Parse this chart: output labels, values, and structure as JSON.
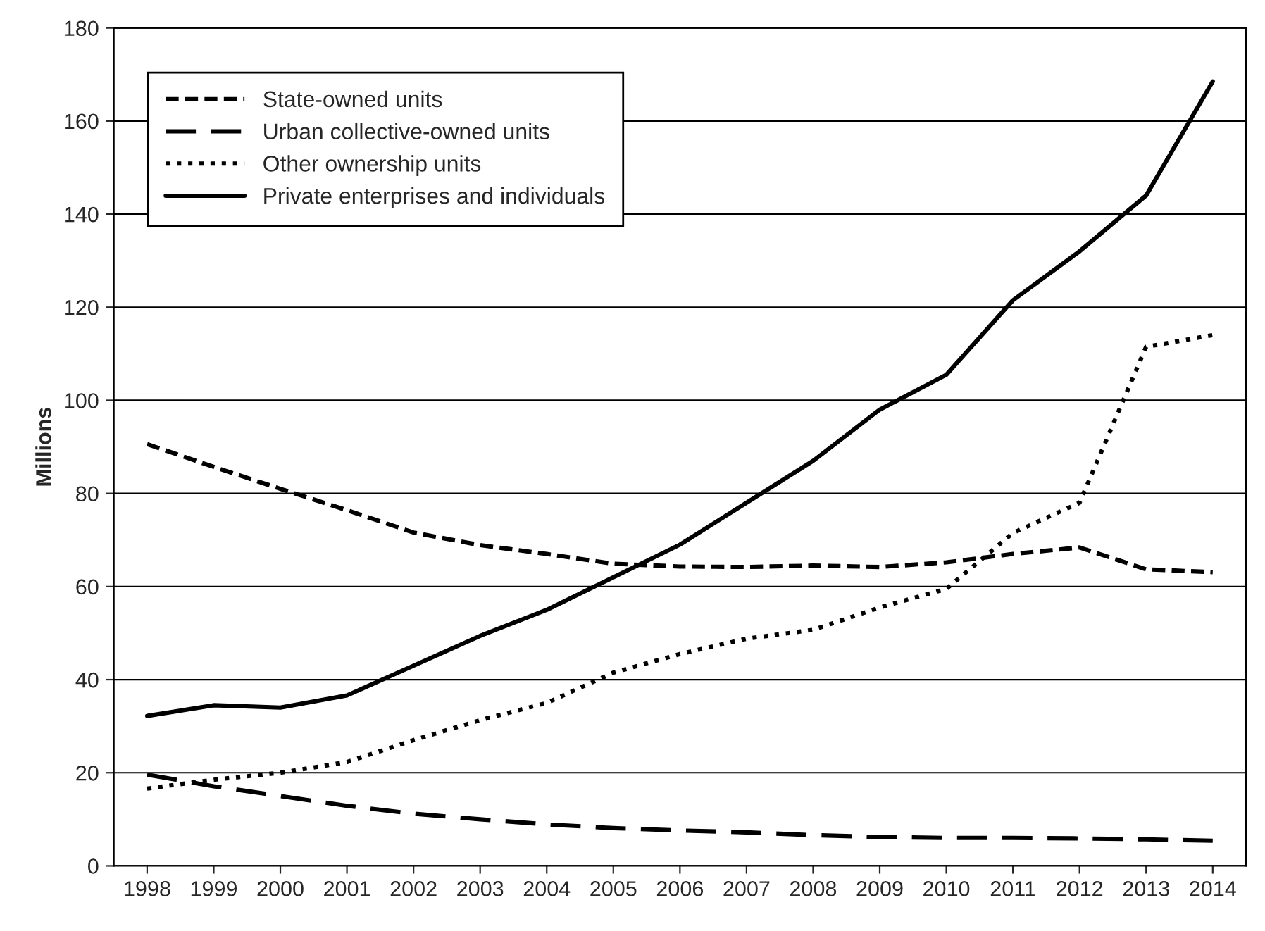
{
  "chart_data": {
    "type": "line",
    "ylabel": "Millions",
    "categories": [
      "1998",
      "1999",
      "2000",
      "2001",
      "2002",
      "2003",
      "2004",
      "2005",
      "2006",
      "2007",
      "2008",
      "2009",
      "2010",
      "2011",
      "2012",
      "2013",
      "2014"
    ],
    "series": [
      {
        "name": "State-owned units",
        "color": "#000000",
        "line_style": "dashed",
        "values": [
          90.6,
          85.7,
          81,
          76.4,
          71.6,
          68.9,
          67,
          64.9,
          64.3,
          64.2,
          64.5,
          64.2,
          65.2,
          67,
          68.4,
          63.7,
          63.1
        ]
      },
      {
        "name": "Urban collective-owned units",
        "color": "#000000",
        "line_style": "dashed",
        "values": [
          19.6,
          17.1,
          15,
          12.9,
          11.2,
          10,
          8.9,
          8.1,
          7.6,
          7.2,
          6.6,
          6.2,
          6,
          6,
          5.9,
          5.7,
          5.4
        ]
      },
      {
        "name": "Other ownership units",
        "color": "#000000",
        "line_style": "dotted",
        "values": [
          16.6,
          18.5,
          20,
          22.3,
          27,
          31.3,
          35,
          41.5,
          45.5,
          48.8,
          50.7,
          55.5,
          59.5,
          71.5,
          78,
          111.5,
          114
        ]
      },
      {
        "name": "Private enterprises and individuals",
        "color": "#000000",
        "line_style": "solid",
        "values": [
          32.2,
          34.5,
          34,
          36.6,
          43,
          49.4,
          55,
          62,
          69,
          78,
          87,
          98,
          105.5,
          121.5,
          132,
          144,
          168.5
        ]
      }
    ],
    "ylim": [
      0,
      180
    ],
    "yticks": [
      0,
      20,
      40,
      60,
      80,
      100,
      120,
      140,
      160,
      180
    ],
    "grid": "y",
    "legend": "top left"
  }
}
